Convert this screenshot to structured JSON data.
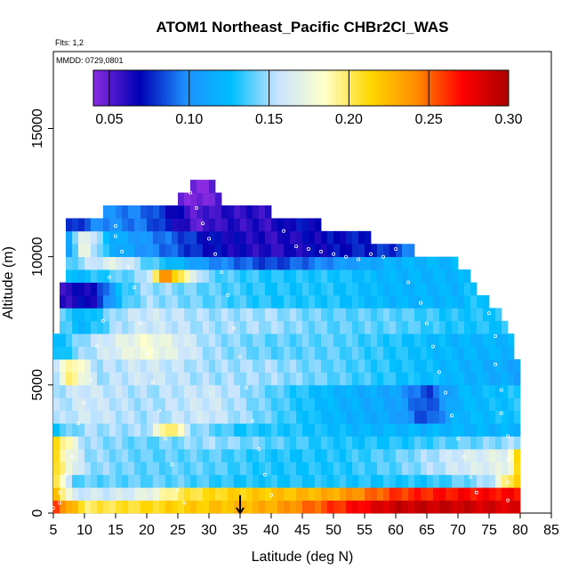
{
  "chart_data": {
    "type": "heatmap",
    "title": "ATOM1 Northeast_Pacific CHBr2Cl_WAS",
    "annotations": {
      "flights": "Flts: 1,2",
      "dates": "MMDD: 0729,0801"
    },
    "xlabel": "Latitude (deg N)",
    "ylabel": "Altitude (m)",
    "xlim": [
      5,
      85
    ],
    "ylim": [
      0,
      18000
    ],
    "x_ticks": [
      5,
      10,
      15,
      20,
      25,
      30,
      35,
      40,
      45,
      50,
      55,
      60,
      65,
      70,
      75,
      80,
      85
    ],
    "y_ticks": [
      0,
      5000,
      10000,
      15000
    ],
    "grid": false,
    "colorbar": {
      "min": 0.04,
      "max": 0.3,
      "ticks": [
        0.05,
        0.1,
        0.15,
        0.2,
        0.25,
        0.3
      ],
      "tick_labels": [
        "0.05",
        "0.10",
        "0.15",
        "0.20",
        "0.25",
        "0.30"
      ],
      "colors": [
        "#8a2be2",
        "#0000b4",
        "#1e90ff",
        "#00bfff",
        "#c8e4ff",
        "#ffffcc",
        "#ffd700",
        "#ff8c00",
        "#ff0000",
        "#aa0000"
      ]
    },
    "cell_lat_step": 1,
    "cell_alt_step": 500,
    "profile_alt_max": [
      [
        6,
        7000
      ],
      [
        7,
        11500
      ],
      [
        12,
        11500
      ],
      [
        13,
        12000
      ],
      [
        22,
        12000
      ],
      [
        25,
        12500
      ],
      [
        27,
        13000
      ],
      [
        31,
        13000
      ],
      [
        32,
        12000
      ],
      [
        40,
        12000
      ],
      [
        43,
        11500
      ],
      [
        48,
        11500
      ],
      [
        50,
        11000
      ],
      [
        56,
        11000
      ],
      [
        60,
        10500
      ],
      [
        63,
        10500
      ],
      [
        70,
        10000
      ],
      [
        73,
        9000
      ],
      [
        77,
        8000
      ],
      [
        79,
        7000
      ],
      [
        80,
        5500
      ]
    ],
    "bands": [
      {
        "alt": [
          0,
          500
        ],
        "stops": [
          [
            5,
            0.26
          ],
          [
            7,
            0.24
          ],
          [
            10,
            0.2
          ],
          [
            20,
            0.21
          ],
          [
            30,
            0.22
          ],
          [
            40,
            0.23
          ],
          [
            50,
            0.26
          ],
          [
            60,
            0.29
          ],
          [
            70,
            0.29
          ],
          [
            80,
            0.28
          ]
        ]
      },
      {
        "alt": [
          500,
          1000
        ],
        "stops": [
          [
            5,
            0.24
          ],
          [
            8,
            0.16
          ],
          [
            15,
            0.16
          ],
          [
            20,
            0.17
          ],
          [
            25,
            0.2
          ],
          [
            30,
            0.21
          ],
          [
            40,
            0.22
          ],
          [
            50,
            0.23
          ],
          [
            60,
            0.26
          ],
          [
            70,
            0.27
          ],
          [
            80,
            0.27
          ]
        ]
      },
      {
        "alt": [
          1000,
          1500
        ],
        "stops": [
          [
            5,
            0.22
          ],
          [
            8,
            0.14
          ],
          [
            15,
            0.14
          ],
          [
            25,
            0.14
          ],
          [
            35,
            0.13
          ],
          [
            45,
            0.13
          ],
          [
            55,
            0.13
          ],
          [
            65,
            0.13
          ],
          [
            75,
            0.15
          ],
          [
            80,
            0.23
          ]
        ]
      },
      {
        "alt": [
          1500,
          2500
        ],
        "stops": [
          [
            5,
            0.21
          ],
          [
            10,
            0.15
          ],
          [
            20,
            0.14
          ],
          [
            30,
            0.14
          ],
          [
            40,
            0.13
          ],
          [
            50,
            0.13
          ],
          [
            60,
            0.14
          ],
          [
            70,
            0.16
          ],
          [
            78,
            0.17
          ],
          [
            80,
            0.22
          ]
        ]
      },
      {
        "alt": [
          2500,
          3000
        ],
        "stops": [
          [
            5,
            0.22
          ],
          [
            10,
            0.15
          ],
          [
            20,
            0.14
          ],
          [
            30,
            0.15
          ],
          [
            40,
            0.14
          ],
          [
            50,
            0.13
          ],
          [
            60,
            0.13
          ],
          [
            70,
            0.14
          ],
          [
            80,
            0.15
          ]
        ]
      },
      {
        "alt": [
          3000,
          3500
        ],
        "stops": [
          [
            5,
            0.13
          ],
          [
            10,
            0.15
          ],
          [
            20,
            0.15
          ],
          [
            24,
            0.21
          ],
          [
            27,
            0.15
          ],
          [
            35,
            0.13
          ],
          [
            45,
            0.13
          ],
          [
            55,
            0.12
          ],
          [
            65,
            0.12
          ],
          [
            75,
            0.12
          ],
          [
            80,
            0.12
          ]
        ]
      },
      {
        "alt": [
          3500,
          5000
        ],
        "stops": [
          [
            5,
            0.15
          ],
          [
            10,
            0.16
          ],
          [
            20,
            0.15
          ],
          [
            30,
            0.16
          ],
          [
            40,
            0.14
          ],
          [
            50,
            0.12
          ],
          [
            60,
            0.11
          ],
          [
            65,
            0.08
          ],
          [
            70,
            0.12
          ],
          [
            80,
            0.13
          ]
        ]
      },
      {
        "alt": [
          5000,
          6000
        ],
        "stops": [
          [
            5,
            0.15
          ],
          [
            8,
            0.2
          ],
          [
            12,
            0.15
          ],
          [
            20,
            0.16
          ],
          [
            30,
            0.15
          ],
          [
            40,
            0.15
          ],
          [
            50,
            0.14
          ],
          [
            60,
            0.13
          ],
          [
            70,
            0.12
          ],
          [
            80,
            0.11
          ]
        ]
      },
      {
        "alt": [
          6000,
          7000
        ],
        "stops": [
          [
            5,
            0.12
          ],
          [
            10,
            0.15
          ],
          [
            20,
            0.18
          ],
          [
            30,
            0.15
          ],
          [
            40,
            0.14
          ],
          [
            50,
            0.14
          ],
          [
            60,
            0.13
          ],
          [
            70,
            0.12
          ],
          [
            79,
            0.12
          ]
        ]
      },
      {
        "alt": [
          7000,
          8000
        ],
        "stops": [
          [
            6,
            0.14
          ],
          [
            10,
            0.12
          ],
          [
            15,
            0.15
          ],
          [
            20,
            0.16
          ],
          [
            30,
            0.15
          ],
          [
            40,
            0.15
          ],
          [
            50,
            0.14
          ],
          [
            60,
            0.14
          ],
          [
            70,
            0.13
          ],
          [
            77,
            0.13
          ]
        ]
      },
      {
        "alt": [
          8000,
          9000
        ],
        "stops": [
          [
            6,
            0.06
          ],
          [
            12,
            0.07
          ],
          [
            16,
            0.13
          ],
          [
            20,
            0.15
          ],
          [
            30,
            0.14
          ],
          [
            40,
            0.13
          ],
          [
            50,
            0.13
          ],
          [
            60,
            0.12
          ],
          [
            70,
            0.12
          ],
          [
            73,
            0.13
          ]
        ]
      },
      {
        "alt": [
          9000,
          9500
        ],
        "stops": [
          [
            6,
            0.12
          ],
          [
            12,
            0.13
          ],
          [
            20,
            0.15
          ],
          [
            23,
            0.25
          ],
          [
            26,
            0.19
          ],
          [
            30,
            0.14
          ],
          [
            40,
            0.13
          ],
          [
            50,
            0.13
          ],
          [
            60,
            0.12
          ],
          [
            70,
            0.12
          ],
          [
            73,
            0.12
          ]
        ]
      },
      {
        "alt": [
          9500,
          10000
        ],
        "stops": [
          [
            6,
            0.13
          ],
          [
            10,
            0.15
          ],
          [
            15,
            0.17
          ],
          [
            20,
            0.14
          ],
          [
            30,
            0.1
          ],
          [
            40,
            0.08
          ],
          [
            50,
            0.1
          ],
          [
            60,
            0.12
          ],
          [
            70,
            0.12
          ]
        ]
      },
      {
        "alt": [
          10000,
          11000
        ],
        "stops": [
          [
            7,
            0.1
          ],
          [
            10,
            0.18
          ],
          [
            14,
            0.12
          ],
          [
            20,
            0.1
          ],
          [
            30,
            0.07
          ],
          [
            40,
            0.06
          ],
          [
            50,
            0.07
          ],
          [
            60,
            0.08
          ],
          [
            63,
            0.1
          ]
        ]
      },
      {
        "alt": [
          11000,
          12000
        ],
        "stops": [
          [
            7,
            0.07
          ],
          [
            13,
            0.1
          ],
          [
            20,
            0.09
          ],
          [
            28,
            0.05
          ],
          [
            32,
            0.06
          ],
          [
            40,
            0.06
          ],
          [
            43,
            0.07
          ]
        ]
      },
      {
        "alt": [
          12000,
          13000
        ],
        "stops": [
          [
            25,
            0.05
          ],
          [
            28,
            0.04
          ],
          [
            31,
            0.05
          ]
        ]
      }
    ],
    "samples": [
      [
        5,
        200
      ],
      [
        6,
        400
      ],
      [
        6,
        800
      ],
      [
        7,
        1500
      ],
      [
        8,
        2200
      ],
      [
        9,
        3500
      ],
      [
        10,
        4300
      ],
      [
        11,
        5200
      ],
      [
        12,
        6500
      ],
      [
        13,
        7500
      ],
      [
        14,
        9200
      ],
      [
        15,
        10800
      ],
      [
        15,
        11200
      ],
      [
        16,
        10200
      ],
      [
        17,
        9600
      ],
      [
        18,
        8800
      ],
      [
        19,
        7400
      ],
      [
        20,
        6200
      ],
      [
        21,
        5100
      ],
      [
        22,
        4000
      ],
      [
        23,
        2900
      ],
      [
        24,
        1900
      ],
      [
        25,
        900
      ],
      [
        26,
        400
      ],
      [
        27,
        12500
      ],
      [
        28,
        11900
      ],
      [
        29,
        11300
      ],
      [
        30,
        10700
      ],
      [
        31,
        10100
      ],
      [
        32,
        9400
      ],
      [
        33,
        8500
      ],
      [
        34,
        7200
      ],
      [
        35,
        6100
      ],
      [
        36,
        4900
      ],
      [
        37,
        3600
      ],
      [
        38,
        2500
      ],
      [
        39,
        1500
      ],
      [
        40,
        700
      ],
      [
        42,
        11000
      ],
      [
        44,
        10400
      ],
      [
        46,
        10300
      ],
      [
        48,
        10200
      ],
      [
        50,
        10100
      ],
      [
        52,
        10000
      ],
      [
        54,
        9900
      ],
      [
        56,
        10100
      ],
      [
        58,
        10000
      ],
      [
        60,
        10300
      ],
      [
        62,
        9000
      ],
      [
        64,
        8200
      ],
      [
        65,
        7400
      ],
      [
        66,
        6500
      ],
      [
        67,
        5500
      ],
      [
        68,
        4700
      ],
      [
        69,
        3800
      ],
      [
        70,
        2900
      ],
      [
        71,
        2200
      ],
      [
        72,
        1400
      ],
      [
        73,
        800
      ],
      [
        74,
        8600
      ],
      [
        75,
        7800
      ],
      [
        76,
        6900
      ],
      [
        76,
        5800
      ],
      [
        77,
        4800
      ],
      [
        77,
        3900
      ],
      [
        78,
        3000
      ],
      [
        78,
        2100
      ],
      [
        78,
        1200
      ],
      [
        78,
        500
      ]
    ],
    "arrow": {
      "lat": 35,
      "alt_top": 700,
      "alt_bottom": 0
    }
  }
}
